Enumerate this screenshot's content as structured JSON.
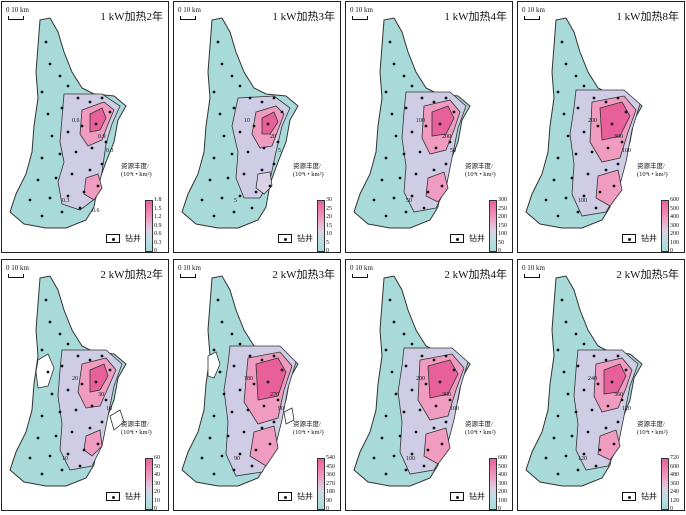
{
  "common": {
    "scale_text": "0  10 km",
    "legend_title_line1": "资源丰度/",
    "legend_title_line2": "(10⁴t • km²)",
    "well_label": "钻井",
    "colors": {
      "high": "#e8609a",
      "mid": "#f09cc1",
      "low": "#a8dada",
      "outline": "#333333",
      "well": "#111111"
    }
  },
  "panels": [
    {
      "title": "1 kW加热2年",
      "ticks": [
        "1.8",
        "1.5",
        "1.2",
        "0.9",
        "0.6",
        "0.3",
        "0"
      ],
      "contour_labels": [
        "0.3",
        "0.6",
        "0.9",
        "0.3",
        "0.6"
      ]
    },
    {
      "title": "1 kW加热3年",
      "ticks": [
        "30",
        "25",
        "20",
        "15",
        "10",
        "5",
        "0"
      ],
      "contour_labels": [
        "5",
        "10",
        "20",
        "5"
      ]
    },
    {
      "title": "1 kW加热4年",
      "ticks": [
        "300",
        "250",
        "200",
        "150",
        "100",
        "50",
        "0"
      ],
      "contour_labels": [
        "50",
        "100",
        "200",
        "50"
      ]
    },
    {
      "title": "1 kW加热8年",
      "ticks": [
        "600",
        "500",
        "400",
        "300",
        "200",
        "100",
        "0"
      ],
      "contour_labels": [
        "100",
        "200",
        "300",
        "100"
      ]
    },
    {
      "title": "2 kW加热2年",
      "ticks": [
        "60",
        "50",
        "40",
        "30",
        "20",
        "10",
        "0"
      ],
      "contour_labels": [
        "10",
        "20",
        "30",
        "10"
      ]
    },
    {
      "title": "2 kW加热3年",
      "ticks": [
        "540",
        "450",
        "360",
        "270",
        "180",
        "90",
        "0"
      ],
      "contour_labels": [
        "90",
        "180",
        "270",
        "90"
      ]
    },
    {
      "title": "2 kW加热4年",
      "ticks": [
        "600",
        "500",
        "400",
        "300",
        "200",
        "100",
        "0"
      ],
      "contour_labels": [
        "100",
        "200",
        "300",
        "100"
      ]
    },
    {
      "title": "2 kW加热5年",
      "ticks": [
        "720",
        "600",
        "480",
        "360",
        "240",
        "120",
        "0"
      ],
      "contour_labels": [
        "120",
        "240",
        "360",
        "120"
      ]
    }
  ]
}
